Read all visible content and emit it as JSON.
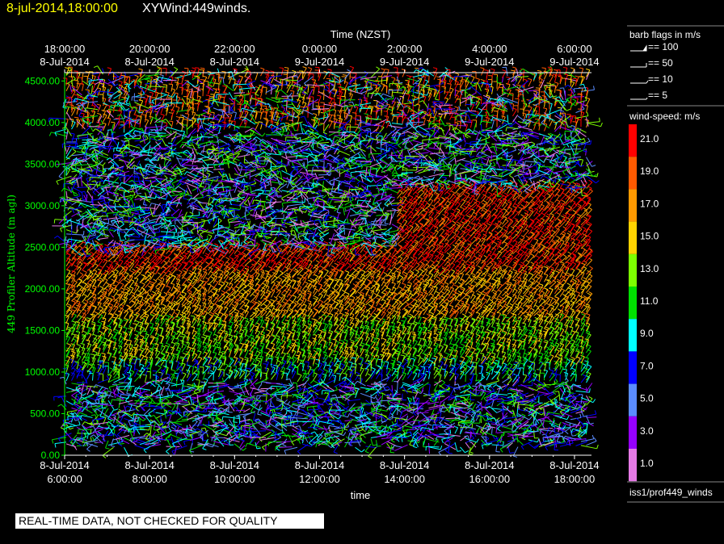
{
  "header": {
    "date": "8-jul-2014,18:00:00",
    "name": "XYWind:449winds."
  },
  "chart_data": {
    "type": "wind-barb time-height plot",
    "top_axis": {
      "label": "Time (NZST)",
      "ticks": [
        {
          "time": "18:00:00",
          "date": "8-Jul-2014"
        },
        {
          "time": "20:00:00",
          "date": "8-Jul-2014"
        },
        {
          "time": "22:00:00",
          "date": "8-Jul-2014"
        },
        {
          "time": "0:00:00",
          "date": "9-Jul-2014"
        },
        {
          "time": "2:00:00",
          "date": "9-Jul-2014"
        },
        {
          "time": "4:00:00",
          "date": "9-Jul-2014"
        },
        {
          "time": "6:00:00",
          "date": "9-Jul-2014"
        }
      ]
    },
    "bottom_axis": {
      "label": "time",
      "ticks": [
        {
          "date": "8-Jul-2014",
          "time": "6:00:00"
        },
        {
          "date": "8-Jul-2014",
          "time": "8:00:00"
        },
        {
          "date": "8-Jul-2014",
          "time": "10:00:00"
        },
        {
          "date": "8-Jul-2014",
          "time": "12:00:00"
        },
        {
          "date": "8-Jul-2014",
          "time": "14:00:00"
        },
        {
          "date": "8-Jul-2014",
          "time": "16:00:00"
        },
        {
          "date": "8-Jul-2014",
          "time": "18:00:00"
        }
      ],
      "hour_range": [
        6,
        18.4
      ]
    },
    "y_axis": {
      "label": "449 Profiler Altitude (m agl)",
      "ticks": [
        "0.00",
        "500.00",
        "1000.00",
        "1500.00",
        "2000.00",
        "2500.00",
        "3000.00",
        "3500.00",
        "4000.00",
        "4500.00"
      ],
      "range": [
        0,
        4600
      ]
    },
    "barb_legend": {
      "title": "barb flags in m/s",
      "items": [
        "== 100",
        "== 50",
        "== 10",
        "== 5"
      ]
    },
    "color_legend": {
      "title": "wind-speed: m/s",
      "bins": [
        {
          "label": "21.0",
          "color": "#ff0000"
        },
        {
          "label": "19.0",
          "color": "#ff5a00"
        },
        {
          "label": "17.0",
          "color": "#ff9900"
        },
        {
          "label": "15.0",
          "color": "#ffd200"
        },
        {
          "label": "13.0",
          "color": "#7dff00"
        },
        {
          "label": "11.0",
          "color": "#00e000"
        },
        {
          "label": "9.0",
          "color": "#00ffff"
        },
        {
          "label": "7.0",
          "color": "#0000ff"
        },
        {
          "label": "5.0",
          "color": "#5a8cff"
        },
        {
          "label": "3.0",
          "color": "#9600ff"
        },
        {
          "label": "1.0",
          "color": "#e67ae6"
        }
      ]
    },
    "source": "iss1/prof449_winds",
    "axis_color": "#00ff00"
  },
  "qc_notice": "REAL-TIME DATA, NOT CHECKED FOR QUALITY"
}
